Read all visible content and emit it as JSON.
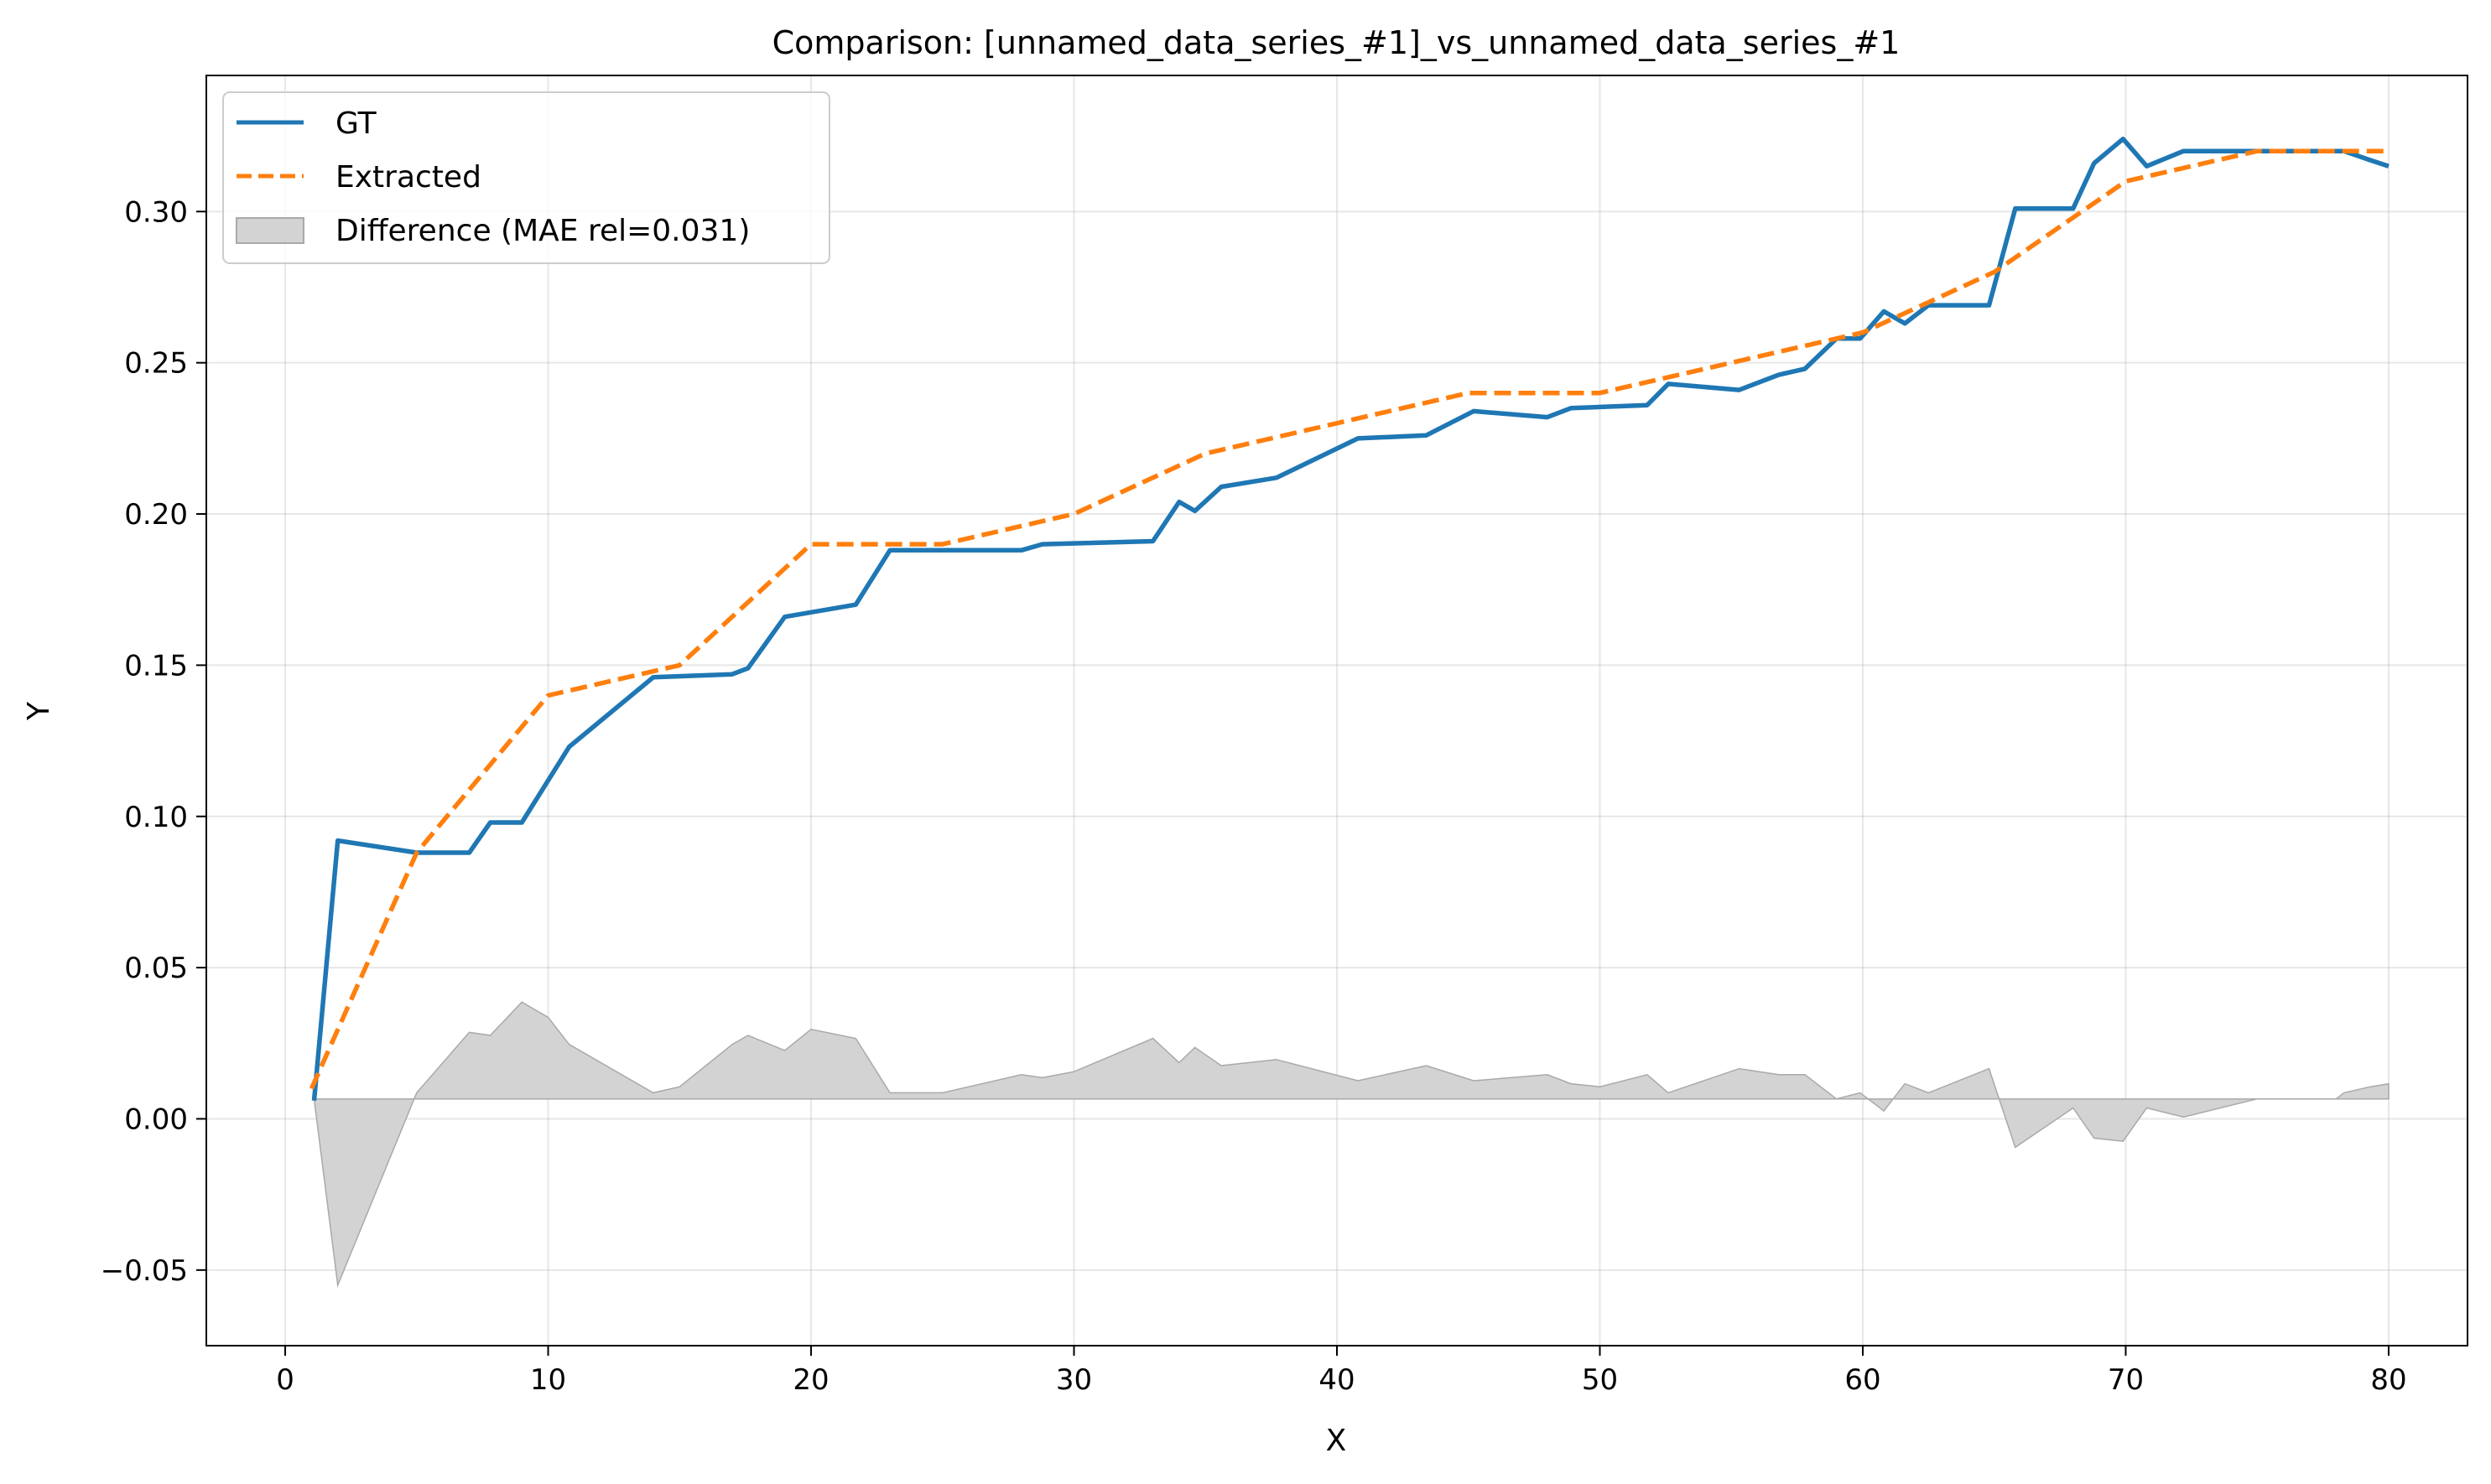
{
  "chart_data": {
    "type": "line",
    "title": "Comparison: [unnamed_data_series_#1]_vs_unnamed_data_series_#1",
    "xlabel": "X",
    "ylabel": "Y",
    "xlim": [
      -3,
      83
    ],
    "ylim": [
      -0.075,
      0.345
    ],
    "xticks": [
      0,
      10,
      20,
      30,
      40,
      50,
      60,
      70,
      80
    ],
    "yticks": [
      -0.05,
      0.0,
      0.05,
      0.1,
      0.15,
      0.2,
      0.25,
      0.3
    ],
    "ytick_labels": [
      "−0.05",
      "0.00",
      "0.05",
      "0.10",
      "0.15",
      "0.20",
      "0.25",
      "0.30"
    ],
    "grid": true,
    "legend_position": "top-left",
    "legend": [
      {
        "key": "gt",
        "label": "GT",
        "style": "line"
      },
      {
        "key": "extracted",
        "label": "Extracted",
        "style": "dashed"
      },
      {
        "key": "difference",
        "label": "Difference (MAE rel=0.031)",
        "style": "area"
      }
    ],
    "colors": {
      "gt": "#1f77b4",
      "extracted": "#ff7f0e",
      "difference": "#d3d3d3",
      "difference_edge": "#a9a9a9"
    },
    "series": [
      {
        "name": "GT",
        "x": [
          1.1,
          2,
          5,
          7,
          7.8,
          9,
          10.8,
          14,
          17,
          17.6,
          19,
          21.7,
          23,
          24,
          28,
          28.8,
          33,
          34,
          34.6,
          35.6,
          37.7,
          40.8,
          43.4,
          45.2,
          48,
          48.9,
          51.8,
          52.6,
          55.3,
          56.8,
          57.8,
          59,
          59.9,
          60.8,
          61.6,
          62.5,
          64.8,
          65.8,
          68,
          68.8,
          69.9,
          70.8,
          72.2,
          73,
          77.5,
          78.3,
          79.3,
          80
        ],
        "y": [
          0.006,
          0.092,
          0.088,
          0.088,
          0.098,
          0.098,
          0.123,
          0.146,
          0.147,
          0.149,
          0.166,
          0.17,
          0.188,
          0.188,
          0.188,
          0.19,
          0.191,
          0.204,
          0.201,
          0.209,
          0.212,
          0.225,
          0.226,
          0.234,
          0.232,
          0.235,
          0.236,
          0.243,
          0.241,
          0.246,
          0.248,
          0.258,
          0.258,
          0.267,
          0.263,
          0.269,
          0.269,
          0.301,
          0.301,
          0.316,
          0.324,
          0.315,
          0.32,
          0.32,
          0.32,
          0.32,
          0.317,
          0.315
        ]
      },
      {
        "name": "Extracted",
        "x": [
          1,
          5,
          10,
          15,
          20,
          25,
          30,
          35,
          40,
          45,
          50,
          55,
          60,
          65,
          70,
          75,
          80
        ],
        "y": [
          0.01,
          0.088,
          0.14,
          0.15,
          0.19,
          0.19,
          0.2,
          0.22,
          0.23,
          0.24,
          0.24,
          0.25,
          0.26,
          0.28,
          0.31,
          0.32,
          0.32
        ]
      },
      {
        "name": "Difference (MAE rel=0.031)",
        "baseline": 0.0066,
        "x": [
          1.1,
          2,
          5,
          7,
          7.8,
          9,
          10,
          10.8,
          14,
          15,
          17,
          17.6,
          19,
          20,
          21.7,
          23,
          25,
          28,
          28.8,
          30,
          33,
          34,
          34.6,
          35.6,
          37.7,
          40.8,
          43.4,
          45.2,
          48,
          48.9,
          50,
          51.8,
          52.6,
          55.3,
          56.8,
          57.8,
          59,
          59.9,
          60.8,
          61.6,
          62.5,
          64.8,
          65.8,
          68,
          68.8,
          69.9,
          70.8,
          72.2,
          75,
          78,
          78.3,
          79.3,
          80
        ],
        "y": [
          0.0066,
          -0.055,
          0.0086,
          0.0286,
          0.0276,
          0.0386,
          0.0336,
          0.0246,
          0.0086,
          0.0106,
          0.0246,
          0.0276,
          0.0226,
          0.0296,
          0.0266,
          0.0086,
          0.0086,
          0.0146,
          0.0136,
          0.0156,
          0.0266,
          0.0186,
          0.0236,
          0.0176,
          0.0196,
          0.0126,
          0.0176,
          0.0126,
          0.0146,
          0.0116,
          0.0106,
          0.0146,
          0.0086,
          0.0166,
          0.0146,
          0.0146,
          0.0066,
          0.0086,
          0.0026,
          0.0116,
          0.0086,
          0.0166,
          -0.0094,
          0.0036,
          -0.0064,
          -0.0074,
          0.0036,
          0.0006,
          0.0066,
          0.0066,
          0.0086,
          0.0106,
          0.0116
        ]
      }
    ]
  }
}
